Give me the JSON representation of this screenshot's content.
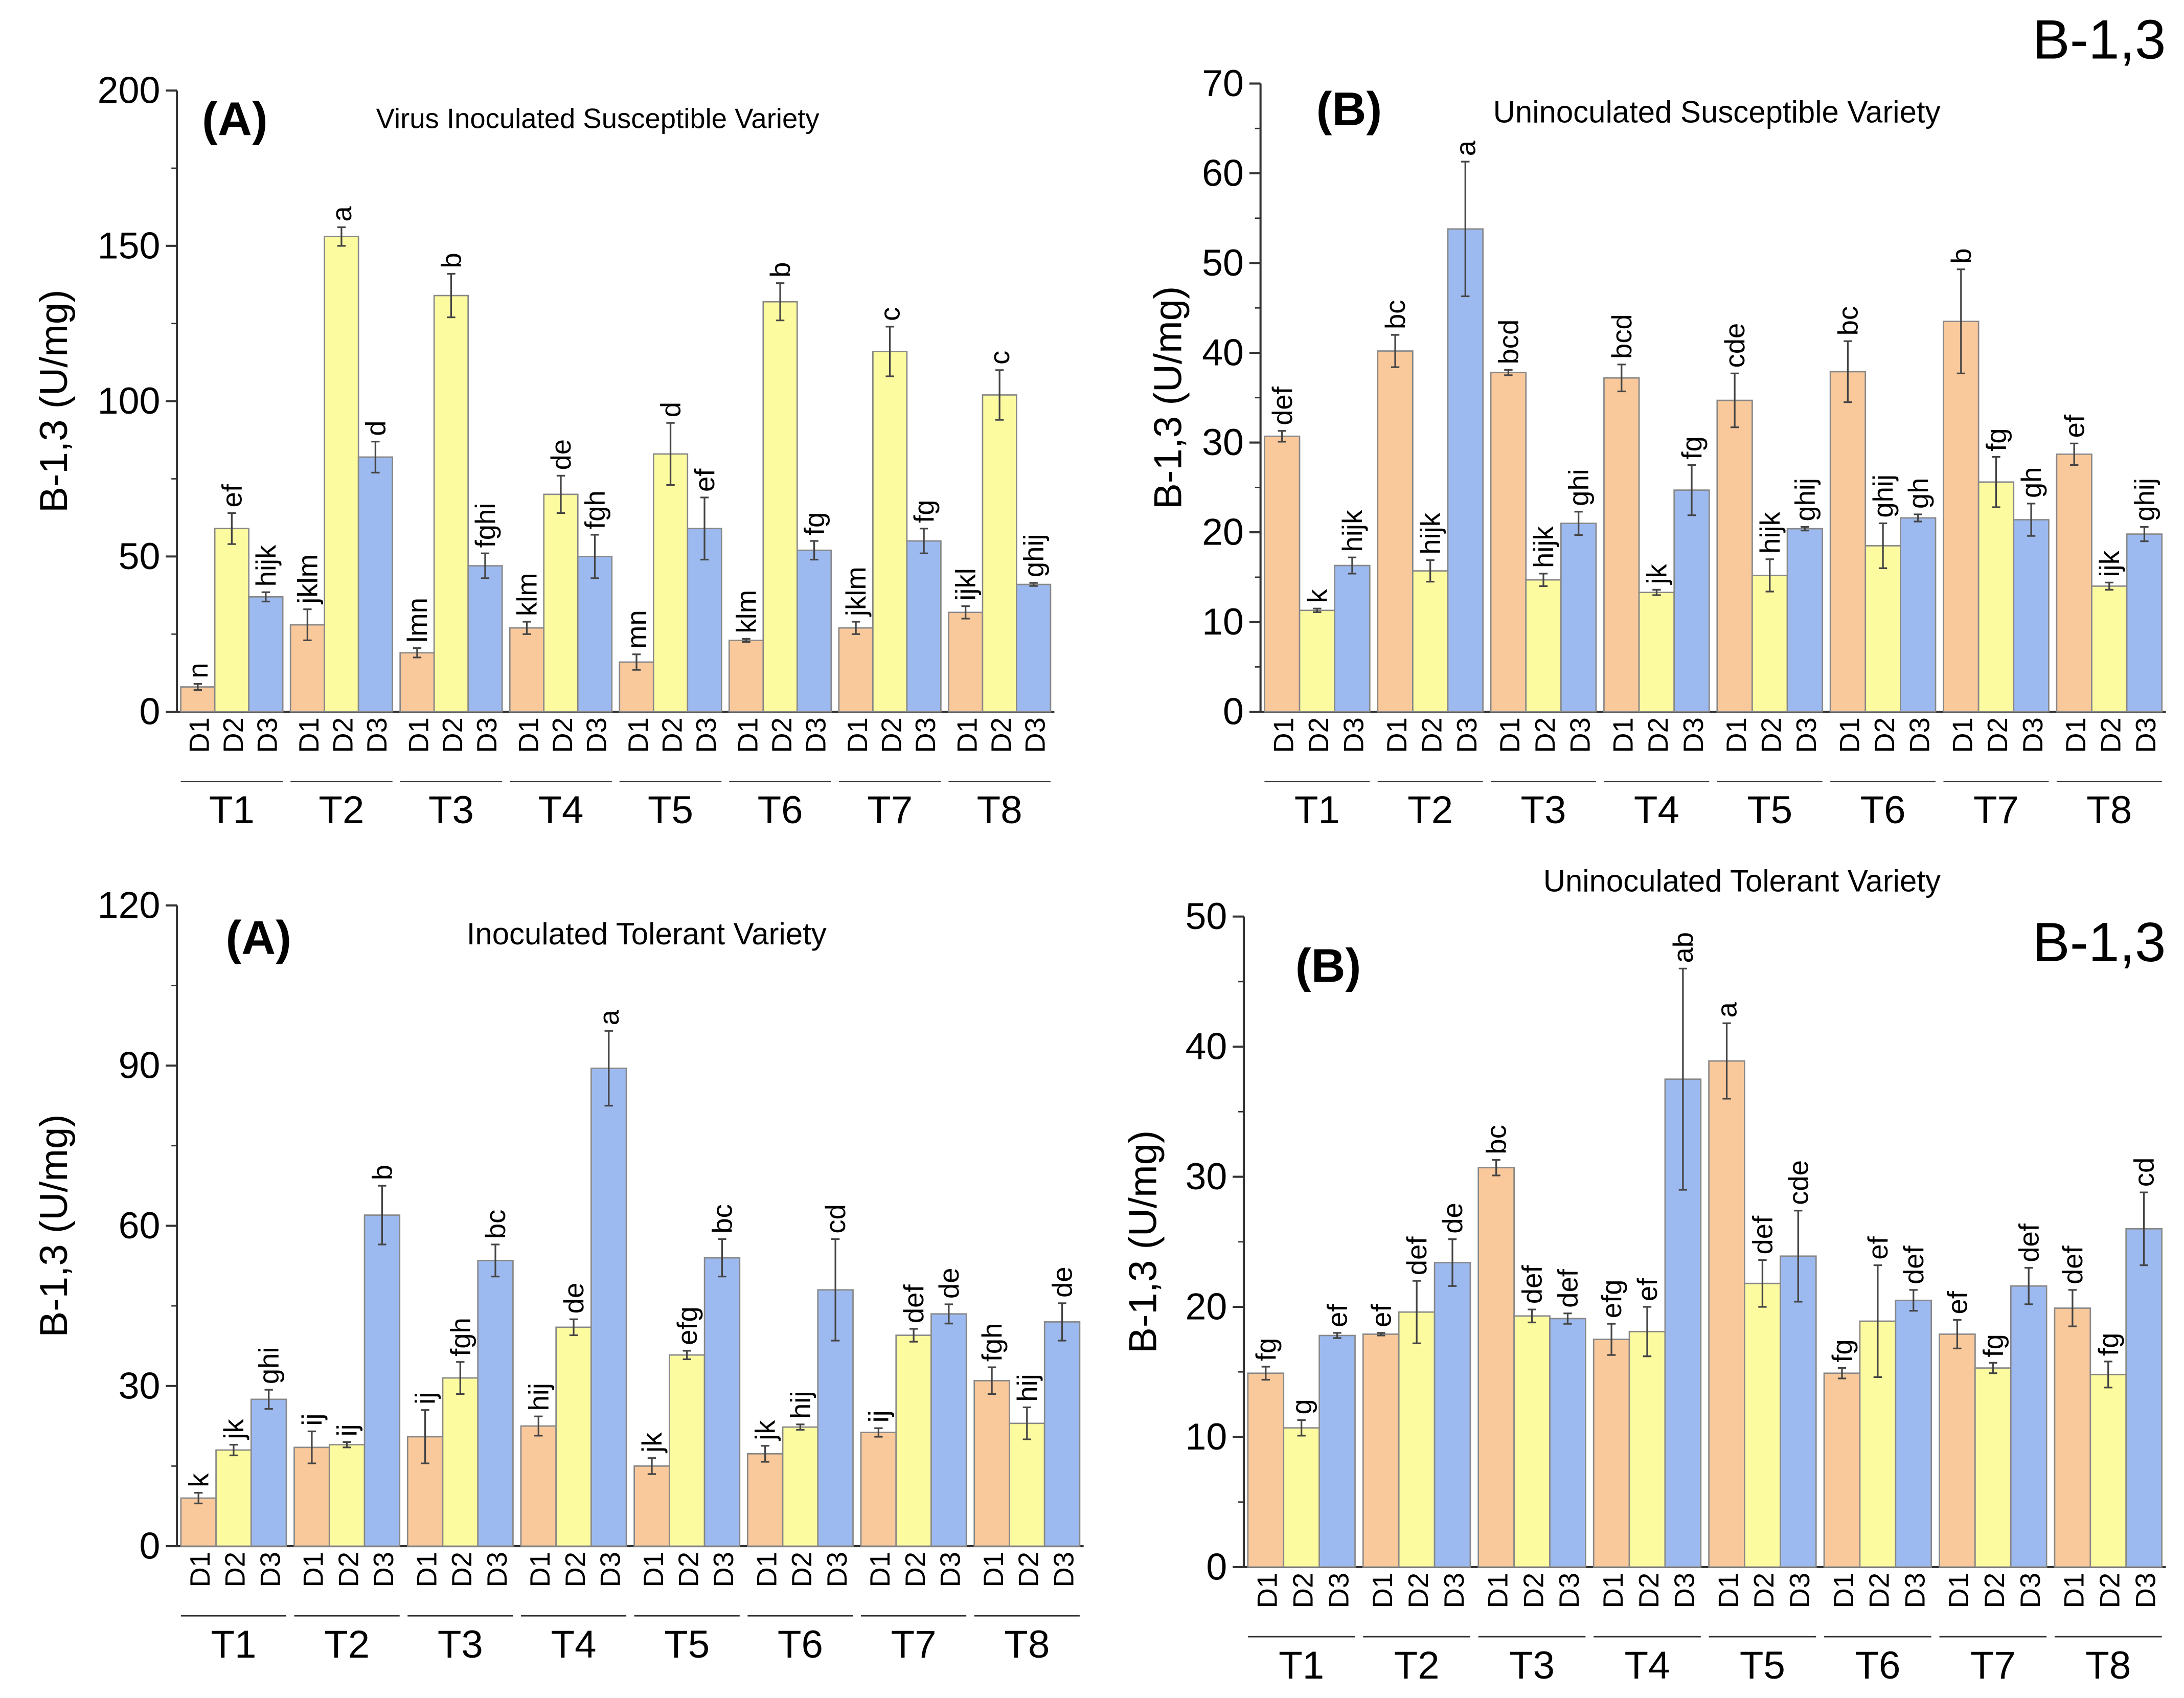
{
  "colors": {
    "D1": "#f9c89b",
    "D2": "#fdfba0",
    "D3": "#9dbaf0",
    "axis": "#333333",
    "error": "#444444"
  },
  "chart_data": [
    {
      "type": "bar",
      "panel_label": "(A)",
      "title": "Virus Inoculated Susceptible Variety",
      "corner_label": "",
      "ylabel": "B-1,3 (U/mg)",
      "ylim": [
        0,
        200
      ],
      "yticks": [
        0,
        50,
        100,
        150,
        200
      ],
      "groups": [
        "T1",
        "T2",
        "T3",
        "T4",
        "T5",
        "T6",
        "T7",
        "T8"
      ],
      "subcategories": [
        "D1",
        "D2",
        "D3"
      ],
      "values": [
        [
          8,
          59,
          37
        ],
        [
          28,
          153,
          82
        ],
        [
          19,
          134,
          47
        ],
        [
          27,
          70,
          50
        ],
        [
          16,
          83,
          59
        ],
        [
          23,
          132,
          52
        ],
        [
          27,
          116,
          55
        ],
        [
          32,
          102,
          41
        ]
      ],
      "errors": [
        [
          1,
          5,
          1.5
        ],
        [
          5,
          3,
          5
        ],
        [
          1.5,
          7,
          4
        ],
        [
          2,
          6,
          7
        ],
        [
          2.5,
          10,
          10
        ],
        [
          0.5,
          6,
          3
        ],
        [
          2,
          8,
          4
        ],
        [
          2,
          8,
          0.5
        ]
      ],
      "letters": [
        [
          "n",
          "ef",
          "hijk"
        ],
        [
          "jklm",
          "a",
          "d"
        ],
        [
          "lmn",
          "b",
          "fghi"
        ],
        [
          "klm",
          "de",
          "fgh"
        ],
        [
          "mn",
          "d",
          "ef"
        ],
        [
          "klm",
          "b",
          "fg"
        ],
        [
          "jklm",
          "c",
          "fg"
        ],
        [
          "ijkl",
          "c",
          "ghij"
        ]
      ],
      "grid": false
    },
    {
      "type": "bar",
      "panel_label": "(B)",
      "title": "Uninoculated Susceptible Variety",
      "corner_label": "B-1,3",
      "ylabel": "B-1,3 (U/mg)",
      "ylim": [
        0,
        70
      ],
      "yticks": [
        0,
        10,
        20,
        30,
        40,
        50,
        60,
        70
      ],
      "groups": [
        "T1",
        "T2",
        "T3",
        "T4",
        "T5",
        "T6",
        "T7",
        "T8"
      ],
      "subcategories": [
        "D1",
        "D2",
        "D3"
      ],
      "values": [
        [
          30.7,
          11.3,
          16.3
        ],
        [
          40.2,
          15.7,
          53.8
        ],
        [
          37.8,
          14.7,
          21
        ],
        [
          37.2,
          13.3,
          24.7
        ],
        [
          34.7,
          15.2,
          20.4
        ],
        [
          37.9,
          18.5,
          21.6
        ],
        [
          43.5,
          25.6,
          21.4
        ],
        [
          28.7,
          14,
          19.8
        ]
      ],
      "errors": [
        [
          0.6,
          0.2,
          0.9
        ],
        [
          1.8,
          1.2,
          7.5
        ],
        [
          0.3,
          0.7,
          1.3
        ],
        [
          1.5,
          0.3,
          2.8
        ],
        [
          3,
          1.8,
          0.2
        ],
        [
          3.4,
          2.5,
          0.4
        ],
        [
          5.8,
          2.8,
          1.8
        ],
        [
          1.2,
          0.4,
          0.8
        ]
      ],
      "letters": [
        [
          "def",
          "k",
          "hijk"
        ],
        [
          "bc",
          "hijk",
          "a"
        ],
        [
          "bcd",
          "hijk",
          "ghi"
        ],
        [
          "bcd",
          "jk",
          "fg"
        ],
        [
          "cde",
          "hijk",
          "ghij"
        ],
        [
          "bc",
          "ghij",
          "gh"
        ],
        [
          "b",
          "fg",
          "gh"
        ],
        [
          "ef",
          "ijk",
          "ghij"
        ]
      ],
      "grid": false
    },
    {
      "type": "bar",
      "panel_label": "(A)",
      "title": "Inoculated Tolerant Variety",
      "corner_label": "",
      "ylabel": "B-1,3 (U/mg)",
      "ylim": [
        0,
        120
      ],
      "yticks": [
        0,
        30,
        60,
        90,
        120
      ],
      "groups": [
        "T1",
        "T2",
        "T3",
        "T4",
        "T5",
        "T6",
        "T7",
        "T8"
      ],
      "subcategories": [
        "D1",
        "D2",
        "D3"
      ],
      "values": [
        [
          9,
          18,
          27.5
        ],
        [
          18.5,
          19,
          62
        ],
        [
          20.5,
          31.5,
          53.5
        ],
        [
          22.5,
          41,
          89.5
        ],
        [
          15,
          35.8,
          54
        ],
        [
          17.3,
          22.3,
          48
        ],
        [
          21.3,
          39.5,
          43.5
        ],
        [
          31,
          23,
          42
        ]
      ],
      "errors": [
        [
          1,
          1,
          1.8
        ],
        [
          3,
          0.5,
          5.5
        ],
        [
          5,
          3,
          3
        ],
        [
          1.8,
          1.5,
          7
        ],
        [
          1.5,
          0.8,
          3.5
        ],
        [
          1.5,
          0.5,
          9.5
        ],
        [
          0.8,
          1.2,
          1.8
        ],
        [
          2.5,
          3,
          3.5
        ]
      ],
      "letters": [
        [
          "k",
          "jk",
          "ghi"
        ],
        [
          "ij",
          "ij",
          "b"
        ],
        [
          "ij",
          "fgh",
          "bc"
        ],
        [
          "hij",
          "de",
          "a"
        ],
        [
          "jk",
          "efg",
          "bc"
        ],
        [
          "jk",
          "hij",
          "cd"
        ],
        [
          "ij",
          "def",
          "de"
        ],
        [
          "fgh",
          "hij",
          "de"
        ]
      ],
      "grid": false
    },
    {
      "type": "bar",
      "panel_label": "(B)",
      "title": "Uninoculated Tolerant Variety",
      "corner_label": "B-1,3",
      "ylabel": "B-1,3 (U/mg)",
      "ylim": [
        0,
        50
      ],
      "yticks": [
        0,
        10,
        20,
        30,
        40,
        50
      ],
      "groups": [
        "T1",
        "T2",
        "T3",
        "T4",
        "T5",
        "T6",
        "T7",
        "T8"
      ],
      "subcategories": [
        "D1",
        "D2",
        "D3"
      ],
      "values": [
        [
          14.9,
          10.7,
          17.8
        ],
        [
          17.9,
          19.6,
          23.4
        ],
        [
          30.7,
          19.3,
          19.1
        ],
        [
          17.5,
          18.1,
          37.5
        ],
        [
          38.9,
          21.8,
          23.9
        ],
        [
          14.9,
          18.9,
          20.5
        ],
        [
          17.9,
          15.3,
          21.6
        ],
        [
          19.9,
          14.8,
          26
        ]
      ],
      "errors": [
        [
          0.5,
          0.6,
          0.2
        ],
        [
          0.1,
          2.4,
          1.8
        ],
        [
          0.6,
          0.5,
          0.4
        ],
        [
          1.2,
          1.9,
          8.5
        ],
        [
          2.9,
          1.8,
          3.5
        ],
        [
          0.4,
          4.3,
          0.8
        ],
        [
          1.1,
          0.4,
          1.4
        ],
        [
          1.4,
          1,
          2.8
        ]
      ],
      "letters": [
        [
          "fg",
          "g",
          "ef"
        ],
        [
          "ef",
          "def",
          "de"
        ],
        [
          "bc",
          "def",
          "def"
        ],
        [
          "efg",
          "ef",
          "ab"
        ],
        [
          "a",
          "def",
          "cde"
        ],
        [
          "fg",
          "ef",
          "def"
        ],
        [
          "ef",
          "fg",
          "def"
        ],
        [
          "def",
          "fg",
          "cd"
        ]
      ],
      "grid": false
    }
  ]
}
